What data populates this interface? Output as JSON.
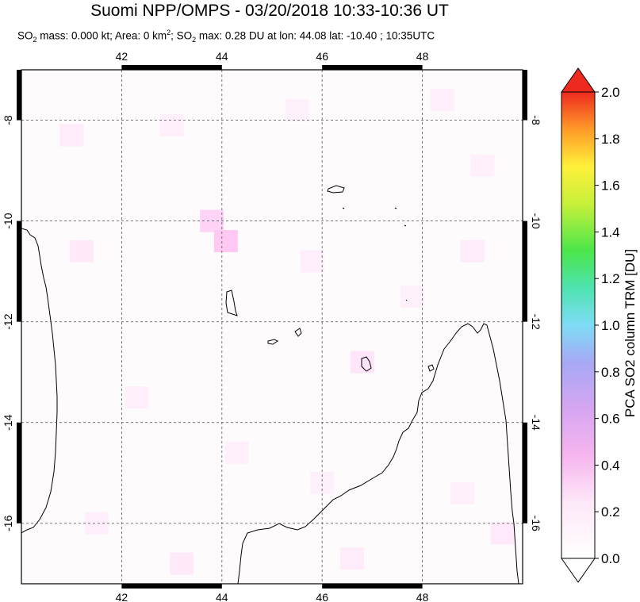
{
  "title": "Suomi NPP/OMPS - 03/20/2018 10:33-10:36 UT",
  "subtitle": {
    "p1": "SO",
    "s1": "2",
    "p2": " mass: 0.000 kt; Area: 0 km",
    "s2": "2",
    "p3": "; SO",
    "s3": "2",
    "p4": " max: 0.28 DU at lon: 44.08 lat: -10.40 ; 10:35UTC"
  },
  "chart_data": {
    "type": "heatmap",
    "title": "Suomi NPP/OMPS - 03/20/2018 10:33-10:36 UT",
    "x": {
      "range": [
        40.0,
        50.0
      ],
      "ticks": [
        42,
        44,
        46,
        48
      ]
    },
    "y": {
      "range": [
        -17.2,
        -7.0
      ],
      "ticks": [
        -8,
        -10,
        -12,
        -14,
        -16
      ]
    },
    "grid": true,
    "colorbar": {
      "label": "PCA SO2 column TRM [DU]",
      "min": 0.0,
      "max": 2.0,
      "ticks": [
        "0.0",
        "0.2",
        "0.4",
        "0.6",
        "0.8",
        "1.0",
        "1.2",
        "1.4",
        "1.6",
        "1.8",
        "2.0"
      ]
    },
    "max_value": {
      "value": 0.28,
      "lon": 44.08,
      "lat": -10.4
    },
    "cells": [
      {
        "lon": 41.0,
        "lat": -8.3,
        "v": 0.08
      },
      {
        "lon": 43.0,
        "lat": -8.1,
        "v": 0.06
      },
      {
        "lon": 45.5,
        "lat": -7.8,
        "v": 0.05
      },
      {
        "lon": 48.4,
        "lat": -7.6,
        "v": 0.07
      },
      {
        "lon": 49.2,
        "lat": -8.9,
        "v": 0.06
      },
      {
        "lon": 43.8,
        "lat": -10.0,
        "v": 0.22
      },
      {
        "lon": 44.08,
        "lat": -10.4,
        "v": 0.28
      },
      {
        "lon": 41.2,
        "lat": -10.6,
        "v": 0.09
      },
      {
        "lon": 45.8,
        "lat": -10.8,
        "v": 0.07
      },
      {
        "lon": 47.8,
        "lat": -11.5,
        "v": 0.05
      },
      {
        "lon": 49.0,
        "lat": -10.6,
        "v": 0.08
      },
      {
        "lon": 46.8,
        "lat": -12.8,
        "v": 0.12
      },
      {
        "lon": 42.3,
        "lat": -13.5,
        "v": 0.06
      },
      {
        "lon": 44.3,
        "lat": -14.6,
        "v": 0.06
      },
      {
        "lon": 46.0,
        "lat": -15.2,
        "v": 0.05
      },
      {
        "lon": 41.5,
        "lat": -16.0,
        "v": 0.07
      },
      {
        "lon": 43.2,
        "lat": -16.8,
        "v": 0.09
      },
      {
        "lon": 46.6,
        "lat": -16.7,
        "v": 0.08
      },
      {
        "lon": 48.8,
        "lat": -15.4,
        "v": 0.06
      },
      {
        "lon": 49.6,
        "lat": -16.2,
        "v": 0.1
      }
    ]
  }
}
